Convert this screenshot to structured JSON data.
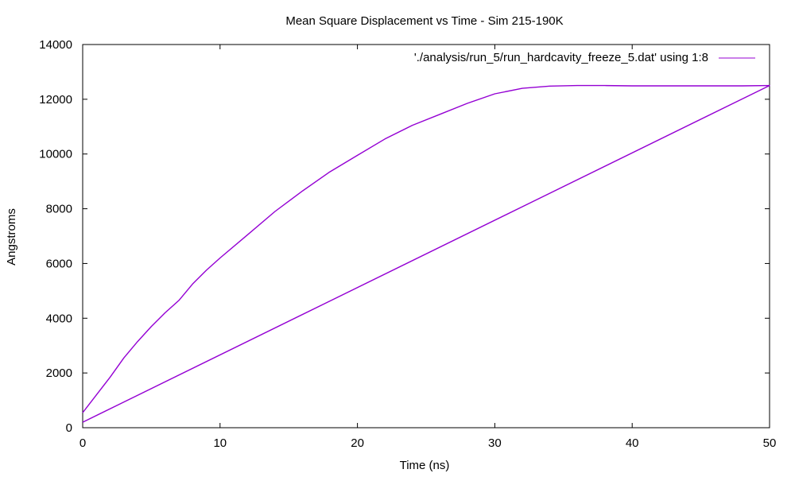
{
  "chart_data": {
    "type": "line",
    "title": "Mean Square Displacement vs Time - Sim 215-190K",
    "xlabel": "Time (ns)",
    "ylabel": "Angstroms",
    "xlim": [
      0,
      50
    ],
    "ylim": [
      0,
      14000
    ],
    "x_ticks": [
      0,
      10,
      20,
      30,
      40,
      50
    ],
    "y_ticks": [
      0,
      2000,
      4000,
      6000,
      8000,
      10000,
      12000,
      14000
    ],
    "grid": false,
    "legend_position": "top-right",
    "series": [
      {
        "name": "'./analysis/run_5/run_hardcavity_freeze_5.dat' using 1:8",
        "color": "#9400d3",
        "x": [
          0,
          1,
          2,
          3,
          4,
          5,
          6,
          7,
          8,
          9,
          10,
          12,
          14,
          16,
          18,
          20,
          22,
          24,
          26,
          28,
          30,
          32,
          34,
          36,
          38,
          40,
          42,
          44,
          46,
          48,
          50,
          50,
          0
        ],
        "y": [
          550,
          1200,
          1850,
          2550,
          3150,
          3700,
          4200,
          4650,
          5250,
          5750,
          6200,
          7050,
          7900,
          8650,
          9350,
          9950,
          10550,
          11050,
          11450,
          11850,
          12200,
          12400,
          12480,
          12500,
          12500,
          12490,
          12490,
          12490,
          12490,
          12490,
          12500,
          12500,
          200
        ]
      }
    ]
  }
}
